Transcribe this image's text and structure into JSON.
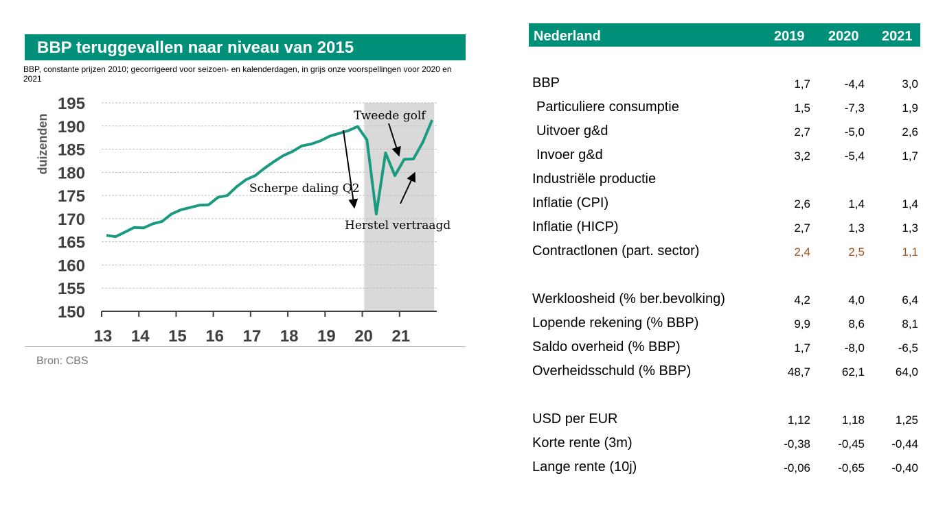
{
  "chart": {
    "title": "BBP teruggevallen naar niveau van 2015",
    "subtitle": "BBP, constante prijzen 2010;  gecorrigeerd voor seizoen- en kalenderdagen, in grijs onze voorspellingen voor 2020 en 2021",
    "source": "Bron: CBS",
    "line_color": "#1a9a80",
    "forecast_color": "#d9d9d9",
    "annotations": [
      "Tweede golf",
      "Scherpe daling Q2",
      "Herstel vertraagd"
    ]
  },
  "chart_data": {
    "type": "line",
    "ylabel": "duizenden",
    "ylim": [
      150,
      195
    ],
    "yticks": [
      "150",
      "155",
      "160",
      "165",
      "170",
      "175",
      "180",
      "185",
      "190",
      "195"
    ],
    "xticks": [
      "13",
      "14",
      "15",
      "16",
      "17",
      "18",
      "19",
      "20",
      "21"
    ],
    "forecast_range": [
      "2020 Q1",
      "2021 Q4"
    ],
    "series": [
      {
        "values": [
          166.4,
          166.1,
          167.1,
          168.1,
          168.0,
          168.9,
          169.4,
          171.0,
          171.9,
          172.4,
          172.9,
          173.0,
          174.6,
          175.0,
          176.9,
          178.4,
          179.3,
          180.9,
          182.3,
          183.6,
          184.5,
          185.7,
          186.1,
          186.8,
          187.8,
          188.4,
          189.0,
          189.9,
          187.0,
          171.0,
          184.2,
          179.3,
          182.8,
          182.9,
          186.5,
          191.3
        ],
        "quarters": [
          "2013 Q1",
          "2013 Q2",
          "2013 Q3",
          "2013 Q4",
          "2014 Q1",
          "2014 Q2",
          "2014 Q3",
          "2014 Q4",
          "2015 Q1",
          "2015 Q2",
          "2015 Q3",
          "2015 Q4",
          "2016 Q1",
          "2016 Q2",
          "2016 Q3",
          "2016 Q4",
          "2017 Q1",
          "2017 Q2",
          "2017 Q3",
          "2017 Q4",
          "2018 Q1",
          "2018 Q2",
          "2018 Q3",
          "2018 Q4",
          "2019 Q1",
          "2019 Q2",
          "2019 Q3",
          "2019 Q4",
          "2020 Q1",
          "2020 Q2",
          "2020 Q3",
          "2020 Q4",
          "2021 Q1",
          "2021 Q2",
          "2021 Q3",
          "2021 Q4"
        ]
      }
    ]
  },
  "table": {
    "header": {
      "label": "Nederland",
      "y1": "2019",
      "y2": "2020",
      "y3": "2021"
    },
    "rows": [
      {
        "label": "BBP",
        "v": [
          "1,7",
          "-4,4",
          "3,0"
        ],
        "indent": false,
        "highlight": false
      },
      {
        "label": "Particuliere consumptie",
        "v": [
          "1,5",
          "-7,3",
          "1,9"
        ],
        "indent": true,
        "highlight": false
      },
      {
        "label": "Uitvoer g&d",
        "v": [
          "2,7",
          "-5,0",
          "2,6"
        ],
        "indent": true,
        "highlight": false
      },
      {
        "label": "Invoer g&d",
        "v": [
          "3,2",
          "-5,4",
          "1,7"
        ],
        "indent": true,
        "highlight": false
      },
      {
        "label": "Industriële productie",
        "v": [
          "",
          "",
          ""
        ],
        "indent": false,
        "highlight": false
      },
      {
        "label": "Inflatie (CPI)",
        "v": [
          "2,6",
          "1,4",
          "1,4"
        ],
        "indent": false,
        "highlight": false
      },
      {
        "label": "Inflatie (HICP)",
        "v": [
          "2,7",
          "1,3",
          "1,3"
        ],
        "indent": false,
        "highlight": false
      },
      {
        "label": "Contractlonen (part. sector)",
        "v": [
          "2,4",
          "2,5",
          "1,1"
        ],
        "indent": false,
        "highlight": true
      },
      {
        "label": "Werkloosheid (% ber.bevolking)",
        "v": [
          "4,2",
          "4,0",
          "6,4"
        ],
        "indent": false,
        "highlight": false
      },
      {
        "label": "Lopende rekening (% BBP)",
        "v": [
          "9,9",
          "8,6",
          "8,1"
        ],
        "indent": false,
        "highlight": false
      },
      {
        "label": "Saldo overheid (% BBP)",
        "v": [
          "1,7",
          "-8,0",
          "-6,5"
        ],
        "indent": false,
        "highlight": false
      },
      {
        "label": "Overheidsschuld (% BBP)",
        "v": [
          "48,7",
          "62,1",
          "64,0"
        ],
        "indent": false,
        "highlight": false
      },
      {
        "label": "USD per EUR",
        "v": [
          "1,12",
          "1,18",
          "1,25"
        ],
        "indent": false,
        "highlight": false
      },
      {
        "label": "Korte rente (3m)",
        "v": [
          "-0,38",
          "-0,45",
          "-0,44"
        ],
        "indent": false,
        "highlight": false
      },
      {
        "label": "Lange rente (10j)",
        "v": [
          "-0,06",
          "-0,65",
          "-0,40"
        ],
        "indent": false,
        "highlight": false
      }
    ],
    "highlight_color": "#a0521a"
  }
}
